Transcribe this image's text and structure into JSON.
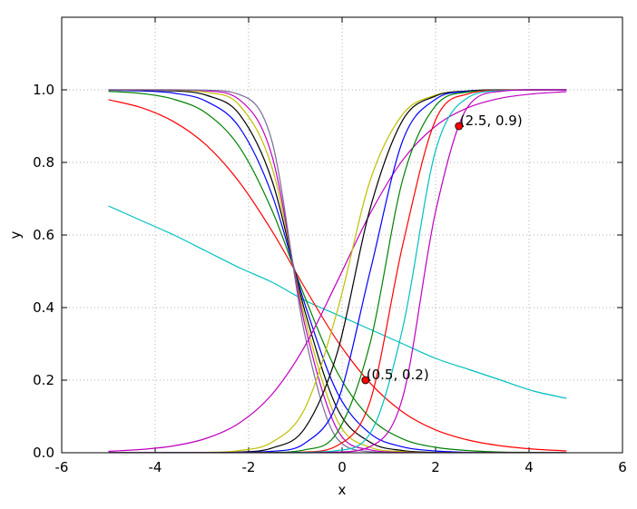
{
  "chart_data": {
    "type": "line",
    "xlabel": "x",
    "ylabel": "y",
    "xlim": [
      -6,
      6
    ],
    "ylim": [
      0,
      1.2
    ],
    "xticks": [
      -6,
      -4,
      -2,
      0,
      2,
      4,
      6
    ],
    "yticks": [
      {
        "value": 0,
        "label": "0.0"
      },
      0.2,
      0.4,
      0.6,
      0.8,
      {
        "value": 1,
        "label": "1.0"
      }
    ],
    "grid": true,
    "x": [
      -5,
      -4.3,
      -3.6,
      -2.9,
      -2.2,
      -1.5,
      -0.8,
      -0.1,
      0.6,
      1.3,
      2.0,
      2.7,
      3.4,
      4.1,
      4.8
    ],
    "series": [
      {
        "color": "#00bfbf",
        "values": [
          0.68,
          0.64,
          0.6,
          0.555,
          0.51,
          0.47,
          0.42,
          0.38,
          0.34,
          0.3,
          0.26,
          0.23,
          0.2,
          0.17,
          0.15
        ]
      },
      {
        "color": "#ff0000",
        "values": [
          0.973,
          0.951,
          0.912,
          0.847,
          0.746,
          0.611,
          0.455,
          0.308,
          0.192,
          0.112,
          0.063,
          0.035,
          0.019,
          0.01,
          0.005
        ]
      },
      {
        "color": "#008000",
        "values": [
          0.996,
          0.99,
          0.974,
          0.935,
          0.843,
          0.668,
          0.43,
          0.221,
          0.096,
          0.038,
          0.015,
          0.006,
          0.002,
          0.001,
          0
        ]
      },
      {
        "color": "#0000ff",
        "values": [
          0.999,
          0.997,
          0.991,
          0.968,
          0.897,
          0.711,
          0.411,
          0.165,
          0.053,
          0.016,
          0.005,
          0.001,
          0,
          0,
          0
        ]
      },
      {
        "color": "#000000",
        "values": [
          1,
          0.999,
          0.997,
          0.985,
          0.933,
          0.75,
          0.392,
          0.121,
          0.029,
          0.006,
          0.001,
          0,
          0,
          0,
          0
        ]
      },
      {
        "color": "#bfbf00",
        "values": [
          1,
          1,
          0.999,
          0.993,
          0.958,
          0.786,
          0.373,
          0.088,
          0.015,
          0.003,
          0,
          0,
          0,
          0,
          0
        ]
      },
      {
        "color": "#bf00bf",
        "values": [
          1,
          1,
          1,
          0.997,
          0.973,
          0.818,
          0.354,
          0.063,
          0.008,
          0.001,
          0,
          0,
          0,
          0,
          0
        ]
      },
      {
        "color": "#7a6a9a",
        "values": [
          1,
          1,
          1,
          0.999,
          0.987,
          0.858,
          0.327,
          0.038,
          0.003,
          0,
          0,
          0,
          0,
          0,
          0
        ]
      },
      {
        "color": "#bf00bf",
        "values": [
          0.004,
          0.009,
          0.019,
          0.04,
          0.082,
          0.161,
          0.293,
          0.473,
          0.659,
          0.807,
          0.9,
          0.951,
          0.977,
          0.989,
          0.995
        ]
      },
      {
        "color": "#bfbf00",
        "values": [
          0,
          0,
          0,
          0.001,
          0.006,
          0.029,
          0.121,
          0.392,
          0.75,
          0.933,
          0.985,
          0.997,
          1,
          1,
          1
        ]
      },
      {
        "color": "#000000",
        "values": [
          0,
          0,
          0,
          0,
          0.002,
          0.013,
          0.067,
          0.277,
          0.673,
          0.917,
          0.983,
          0.997,
          1,
          1,
          1
        ]
      },
      {
        "color": "#0000ff",
        "values": [
          0,
          0,
          0,
          0,
          0.001,
          0.004,
          0.026,
          0.139,
          0.5,
          0.861,
          0.974,
          0.996,
          0.999,
          1,
          1
        ]
      },
      {
        "color": "#008000",
        "values": [
          0,
          0,
          0,
          0,
          0,
          0.001,
          0.008,
          0.057,
          0.302,
          0.754,
          0.956,
          0.994,
          0.999,
          1,
          1
        ]
      },
      {
        "color": "#ff0000",
        "values": [
          0,
          0,
          0,
          0,
          0,
          0,
          0.002,
          0.02,
          0.142,
          0.574,
          0.917,
          0.989,
          0.999,
          1,
          1
        ]
      },
      {
        "color": "#00bfbf",
        "values": [
          0,
          0,
          0,
          0,
          0,
          0,
          0.001,
          0.006,
          0.053,
          0.345,
          0.832,
          0.979,
          0.998,
          1,
          1
        ]
      },
      {
        "color": "#bf00bf",
        "values": [
          0,
          0,
          0,
          0,
          0,
          0,
          0,
          0.002,
          0.017,
          0.154,
          0.664,
          0.955,
          0.996,
          1,
          1
        ]
      }
    ],
    "annotations": [
      {
        "x": 0.5,
        "y": 0.2,
        "text": "(0.5, 0.2)",
        "color": "#ff0000"
      },
      {
        "x": 2.5,
        "y": 0.9,
        "text": "(2.5, 0.9)",
        "color": "#ff0000"
      }
    ]
  }
}
